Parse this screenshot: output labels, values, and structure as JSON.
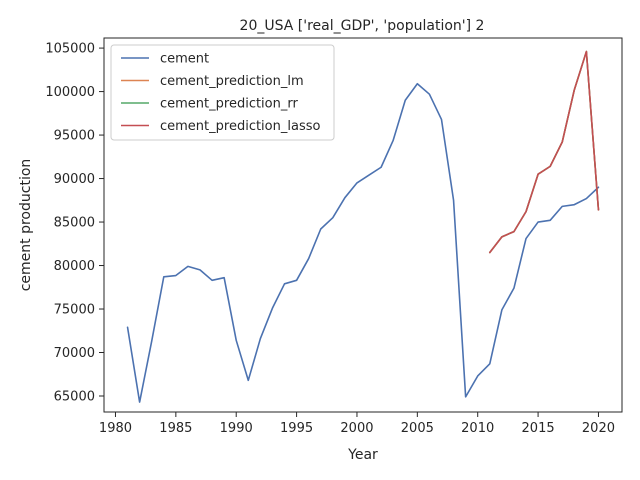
{
  "chart_data": {
    "type": "line",
    "title": "20_USA ['real_GDP', 'population'] 2",
    "xlabel": "Year",
    "ylabel": "cement production",
    "xlim": [
      1979.05,
      2021.95
    ],
    "ylim": [
      63160,
      106160
    ],
    "xticks": [
      1980,
      1985,
      1990,
      1995,
      2000,
      2005,
      2010,
      2015,
      2020
    ],
    "yticks": [
      65000,
      70000,
      75000,
      80000,
      85000,
      90000,
      95000,
      100000,
      105000
    ],
    "grid": false,
    "legend_position": "upper-left",
    "series": [
      {
        "name": "cement",
        "color": "#4c72b0",
        "x": [
          1981,
          1982,
          1983,
          1984,
          1985,
          1986,
          1987,
          1988,
          1989,
          1990,
          1991,
          1992,
          1993,
          1994,
          1995,
          1996,
          1997,
          1998,
          1999,
          2000,
          2001,
          2002,
          2003,
          2004,
          2005,
          2006,
          2007,
          2008,
          2009,
          2010,
          2011,
          2012,
          2013,
          2014,
          2015,
          2016,
          2017,
          2018,
          2019,
          2020
        ],
        "y": [
          72900,
          64300,
          71300,
          78700,
          78850,
          79900,
          79500,
          78300,
          78600,
          71400,
          66800,
          71600,
          75100,
          77900,
          78300,
          80800,
          84200,
          85500,
          87800,
          89500,
          90400,
          91300,
          94400,
          99000,
          100900,
          99700,
          96800,
          87500,
          64900,
          67300,
          68700,
          74900,
          77400,
          83100,
          85000,
          85200,
          86800,
          87000,
          87700,
          89000
        ]
      },
      {
        "name": "cement_prediction_lm",
        "color": "#dd8452",
        "x": [
          2011,
          2012,
          2013,
          2014,
          2015,
          2016,
          2017,
          2018,
          2019,
          2020
        ],
        "y": [
          81500,
          83300,
          83900,
          86200,
          90500,
          91400,
          94200,
          100200,
          104600,
          86400
        ]
      },
      {
        "name": "cement_prediction_rr",
        "color": "#55a868",
        "x": [
          2011,
          2012,
          2013,
          2014,
          2015,
          2016,
          2017,
          2018,
          2019,
          2020
        ],
        "y": [
          81500,
          83300,
          83900,
          86200,
          90500,
          91400,
          94200,
          100200,
          104600,
          86400
        ]
      },
      {
        "name": "cement_prediction_lasso",
        "color": "#c44e52",
        "x": [
          2011,
          2012,
          2013,
          2014,
          2015,
          2016,
          2017,
          2018,
          2019,
          2020
        ],
        "y": [
          81500,
          83300,
          83900,
          86200,
          90500,
          91400,
          94200,
          100200,
          104600,
          86400
        ]
      }
    ]
  }
}
